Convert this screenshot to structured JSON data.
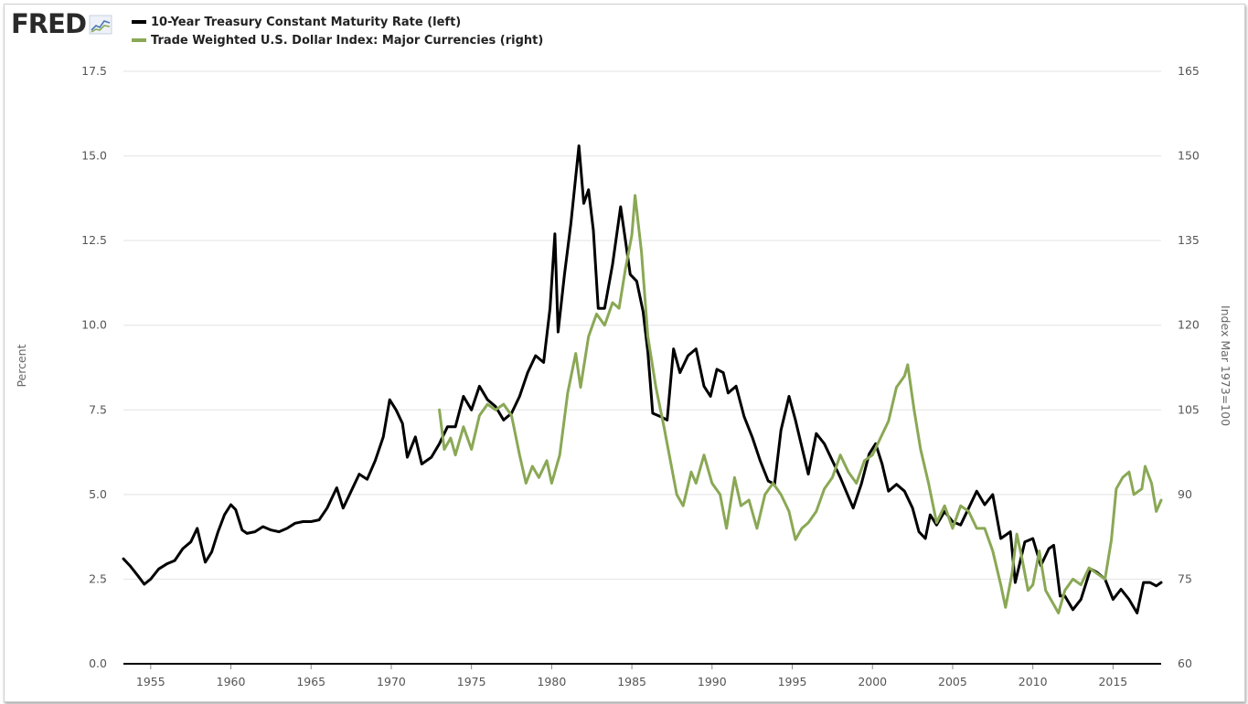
{
  "logo": {
    "text": "FRED",
    "mark": "chart-icon"
  },
  "legend": [
    {
      "label": "10-Year Treasury Constant Maturity Rate (left)",
      "color": "#000000"
    },
    {
      "label": "Trade Weighted U.S. Dollar Index: Major Currencies (right)",
      "color": "#8aa855"
    }
  ],
  "chart_data": {
    "type": "line",
    "x_range": [
      1953.3,
      2018.0
    ],
    "x_ticks": [
      1955,
      1960,
      1965,
      1970,
      1975,
      1980,
      1985,
      1990,
      1995,
      2000,
      2005,
      2010,
      2015
    ],
    "x_tick_labels": [
      "1955",
      "1960",
      "1965",
      "1970",
      "1975",
      "1980",
      "1985",
      "1990",
      "1995",
      "2000",
      "2005",
      "2010",
      "2015"
    ],
    "y_left": {
      "label": "Percent",
      "range": [
        0,
        17.5
      ],
      "ticks": [
        0,
        2.5,
        5,
        7.5,
        10,
        12.5,
        15,
        17.5
      ],
      "tick_labels": [
        "0.0",
        "2.5",
        "5.0",
        "7.5",
        "10.0",
        "12.5",
        "15.0",
        "17.5"
      ]
    },
    "y_right": {
      "label": "Index Mar 1973=100",
      "range": [
        60,
        165
      ],
      "ticks": [
        60,
        75,
        90,
        105,
        120,
        135,
        150,
        165
      ],
      "tick_labels": [
        "60",
        "75",
        "90",
        "105",
        "120",
        "135",
        "150",
        "165"
      ]
    },
    "grid": true,
    "series": [
      {
        "name": "10-Year Treasury Constant Maturity Rate (left)",
        "axis": "left",
        "color": "#000000",
        "points": [
          [
            1953.3,
            3.1
          ],
          [
            1953.7,
            2.9
          ],
          [
            1954.2,
            2.6
          ],
          [
            1954.6,
            2.35
          ],
          [
            1955.0,
            2.5
          ],
          [
            1955.5,
            2.8
          ],
          [
            1956.0,
            2.95
          ],
          [
            1956.5,
            3.05
          ],
          [
            1957.0,
            3.4
          ],
          [
            1957.5,
            3.6
          ],
          [
            1957.9,
            4.0
          ],
          [
            1958.1,
            3.6
          ],
          [
            1958.4,
            3.0
          ],
          [
            1958.8,
            3.3
          ],
          [
            1959.2,
            3.9
          ],
          [
            1959.6,
            4.4
          ],
          [
            1960.0,
            4.7
          ],
          [
            1960.3,
            4.55
          ],
          [
            1960.7,
            3.95
          ],
          [
            1961.0,
            3.85
          ],
          [
            1961.5,
            3.9
          ],
          [
            1962.0,
            4.05
          ],
          [
            1962.5,
            3.95
          ],
          [
            1963.0,
            3.9
          ],
          [
            1963.5,
            4.0
          ],
          [
            1964.0,
            4.15
          ],
          [
            1964.5,
            4.2
          ],
          [
            1965.0,
            4.2
          ],
          [
            1965.5,
            4.25
          ],
          [
            1966.0,
            4.6
          ],
          [
            1966.6,
            5.2
          ],
          [
            1967.0,
            4.6
          ],
          [
            1967.5,
            5.1
          ],
          [
            1968.0,
            5.6
          ],
          [
            1968.5,
            5.45
          ],
          [
            1969.0,
            6.0
          ],
          [
            1969.5,
            6.7
          ],
          [
            1969.9,
            7.8
          ],
          [
            1970.3,
            7.5
          ],
          [
            1970.7,
            7.1
          ],
          [
            1971.0,
            6.1
          ],
          [
            1971.5,
            6.7
          ],
          [
            1971.9,
            5.9
          ],
          [
            1972.5,
            6.1
          ],
          [
            1973.0,
            6.5
          ],
          [
            1973.5,
            7.0
          ],
          [
            1974.0,
            7.0
          ],
          [
            1974.5,
            7.9
          ],
          [
            1975.0,
            7.5
          ],
          [
            1975.5,
            8.2
          ],
          [
            1976.0,
            7.8
          ],
          [
            1976.5,
            7.6
          ],
          [
            1977.0,
            7.2
          ],
          [
            1977.5,
            7.4
          ],
          [
            1978.0,
            7.9
          ],
          [
            1978.5,
            8.6
          ],
          [
            1979.0,
            9.1
          ],
          [
            1979.5,
            8.9
          ],
          [
            1979.9,
            10.5
          ],
          [
            1980.2,
            12.7
          ],
          [
            1980.4,
            9.8
          ],
          [
            1980.8,
            11.5
          ],
          [
            1981.2,
            13.0
          ],
          [
            1981.7,
            15.3
          ],
          [
            1982.0,
            13.6
          ],
          [
            1982.3,
            14.0
          ],
          [
            1982.6,
            12.8
          ],
          [
            1982.9,
            10.5
          ],
          [
            1983.3,
            10.5
          ],
          [
            1983.8,
            11.8
          ],
          [
            1984.3,
            13.5
          ],
          [
            1984.6,
            12.5
          ],
          [
            1984.9,
            11.5
          ],
          [
            1985.3,
            11.3
          ],
          [
            1985.7,
            10.4
          ],
          [
            1986.0,
            9.2
          ],
          [
            1986.3,
            7.4
          ],
          [
            1986.8,
            7.3
          ],
          [
            1987.2,
            7.2
          ],
          [
            1987.6,
            9.3
          ],
          [
            1988.0,
            8.6
          ],
          [
            1988.5,
            9.1
          ],
          [
            1989.0,
            9.3
          ],
          [
            1989.5,
            8.2
          ],
          [
            1989.9,
            7.9
          ],
          [
            1990.3,
            8.7
          ],
          [
            1990.7,
            8.6
          ],
          [
            1991.0,
            8.0
          ],
          [
            1991.5,
            8.2
          ],
          [
            1992.0,
            7.3
          ],
          [
            1992.5,
            6.7
          ],
          [
            1993.0,
            6.0
          ],
          [
            1993.5,
            5.4
          ],
          [
            1993.9,
            5.3
          ],
          [
            1994.3,
            6.9
          ],
          [
            1994.8,
            7.9
          ],
          [
            1995.2,
            7.2
          ],
          [
            1995.7,
            6.2
          ],
          [
            1996.0,
            5.6
          ],
          [
            1996.5,
            6.8
          ],
          [
            1997.0,
            6.5
          ],
          [
            1997.5,
            6.0
          ],
          [
            1998.0,
            5.5
          ],
          [
            1998.8,
            4.6
          ],
          [
            1999.3,
            5.3
          ],
          [
            1999.8,
            6.2
          ],
          [
            2000.2,
            6.5
          ],
          [
            2000.6,
            5.9
          ],
          [
            2001.0,
            5.1
          ],
          [
            2001.5,
            5.3
          ],
          [
            2002.0,
            5.1
          ],
          [
            2002.5,
            4.6
          ],
          [
            2002.9,
            3.9
          ],
          [
            2003.3,
            3.7
          ],
          [
            2003.6,
            4.4
          ],
          [
            2004.0,
            4.1
          ],
          [
            2004.5,
            4.5
          ],
          [
            2005.0,
            4.2
          ],
          [
            2005.5,
            4.1
          ],
          [
            2006.0,
            4.6
          ],
          [
            2006.5,
            5.1
          ],
          [
            2007.0,
            4.7
          ],
          [
            2007.5,
            5.0
          ],
          [
            2008.0,
            3.7
          ],
          [
            2008.6,
            3.9
          ],
          [
            2008.9,
            2.4
          ],
          [
            2009.5,
            3.6
          ],
          [
            2010.0,
            3.7
          ],
          [
            2010.5,
            2.9
          ],
          [
            2011.0,
            3.4
          ],
          [
            2011.3,
            3.5
          ],
          [
            2011.7,
            2.0
          ],
          [
            2012.0,
            2.0
          ],
          [
            2012.5,
            1.6
          ],
          [
            2013.0,
            1.9
          ],
          [
            2013.6,
            2.8
          ],
          [
            2014.0,
            2.7
          ],
          [
            2014.5,
            2.5
          ],
          [
            2015.0,
            1.9
          ],
          [
            2015.5,
            2.2
          ],
          [
            2016.0,
            1.9
          ],
          [
            2016.5,
            1.5
          ],
          [
            2016.9,
            2.4
          ],
          [
            2017.3,
            2.4
          ],
          [
            2017.7,
            2.3
          ],
          [
            2018.0,
            2.4
          ]
        ]
      },
      {
        "name": "Trade Weighted U.S. Dollar Index: Major Currencies (right)",
        "axis": "right",
        "color": "#8aa855",
        "points": [
          [
            1973.0,
            105
          ],
          [
            1973.3,
            98
          ],
          [
            1973.7,
            100
          ],
          [
            1974.0,
            97
          ],
          [
            1974.5,
            102
          ],
          [
            1975.0,
            98
          ],
          [
            1975.5,
            104
          ],
          [
            1976.0,
            106
          ],
          [
            1976.5,
            105
          ],
          [
            1977.0,
            106
          ],
          [
            1977.5,
            104
          ],
          [
            1978.0,
            97
          ],
          [
            1978.4,
            92
          ],
          [
            1978.8,
            95
          ],
          [
            1979.2,
            93
          ],
          [
            1979.7,
            96
          ],
          [
            1980.0,
            92
          ],
          [
            1980.5,
            97
          ],
          [
            1981.0,
            108
          ],
          [
            1981.5,
            115
          ],
          [
            1981.8,
            109
          ],
          [
            1982.3,
            118
          ],
          [
            1982.8,
            122
          ],
          [
            1983.3,
            120
          ],
          [
            1983.8,
            124
          ],
          [
            1984.2,
            123
          ],
          [
            1984.6,
            130
          ],
          [
            1985.0,
            136
          ],
          [
            1985.2,
            143
          ],
          [
            1985.6,
            133
          ],
          [
            1986.0,
            118
          ],
          [
            1986.5,
            109
          ],
          [
            1987.0,
            102
          ],
          [
            1987.4,
            96
          ],
          [
            1987.8,
            90
          ],
          [
            1988.2,
            88
          ],
          [
            1988.7,
            94
          ],
          [
            1989.0,
            92
          ],
          [
            1989.5,
            97
          ],
          [
            1990.0,
            92
          ],
          [
            1990.5,
            90
          ],
          [
            1990.9,
            84
          ],
          [
            1991.4,
            93
          ],
          [
            1991.8,
            88
          ],
          [
            1992.3,
            89
          ],
          [
            1992.8,
            84
          ],
          [
            1993.3,
            90
          ],
          [
            1993.8,
            92
          ],
          [
            1994.3,
            90
          ],
          [
            1994.8,
            87
          ],
          [
            1995.2,
            82
          ],
          [
            1995.6,
            84
          ],
          [
            1996.0,
            85
          ],
          [
            1996.5,
            87
          ],
          [
            1997.0,
            91
          ],
          [
            1997.5,
            93
          ],
          [
            1998.0,
            97
          ],
          [
            1998.5,
            94
          ],
          [
            1999.0,
            92
          ],
          [
            1999.5,
            96
          ],
          [
            2000.0,
            97
          ],
          [
            2000.5,
            100
          ],
          [
            2001.0,
            103
          ],
          [
            2001.5,
            109
          ],
          [
            2002.0,
            111
          ],
          [
            2002.2,
            113
          ],
          [
            2002.6,
            105
          ],
          [
            2003.0,
            98
          ],
          [
            2003.5,
            92
          ],
          [
            2004.0,
            85
          ],
          [
            2004.5,
            88
          ],
          [
            2005.0,
            84
          ],
          [
            2005.5,
            88
          ],
          [
            2006.0,
            87
          ],
          [
            2006.5,
            84
          ],
          [
            2007.0,
            84
          ],
          [
            2007.5,
            80
          ],
          [
            2008.0,
            74
          ],
          [
            2008.3,
            70
          ],
          [
            2008.7,
            76
          ],
          [
            2009.0,
            83
          ],
          [
            2009.3,
            79
          ],
          [
            2009.7,
            73
          ],
          [
            2010.0,
            74
          ],
          [
            2010.4,
            80
          ],
          [
            2010.8,
            73
          ],
          [
            2011.2,
            71
          ],
          [
            2011.6,
            69
          ],
          [
            2012.0,
            73
          ],
          [
            2012.5,
            75
          ],
          [
            2013.0,
            74
          ],
          [
            2013.5,
            77
          ],
          [
            2014.0,
            76
          ],
          [
            2014.5,
            75
          ],
          [
            2014.9,
            82
          ],
          [
            2015.2,
            91
          ],
          [
            2015.6,
            93
          ],
          [
            2016.0,
            94
          ],
          [
            2016.3,
            90
          ],
          [
            2016.8,
            91
          ],
          [
            2017.0,
            95
          ],
          [
            2017.4,
            92
          ],
          [
            2017.7,
            87
          ],
          [
            2018.0,
            89
          ]
        ]
      }
    ]
  }
}
